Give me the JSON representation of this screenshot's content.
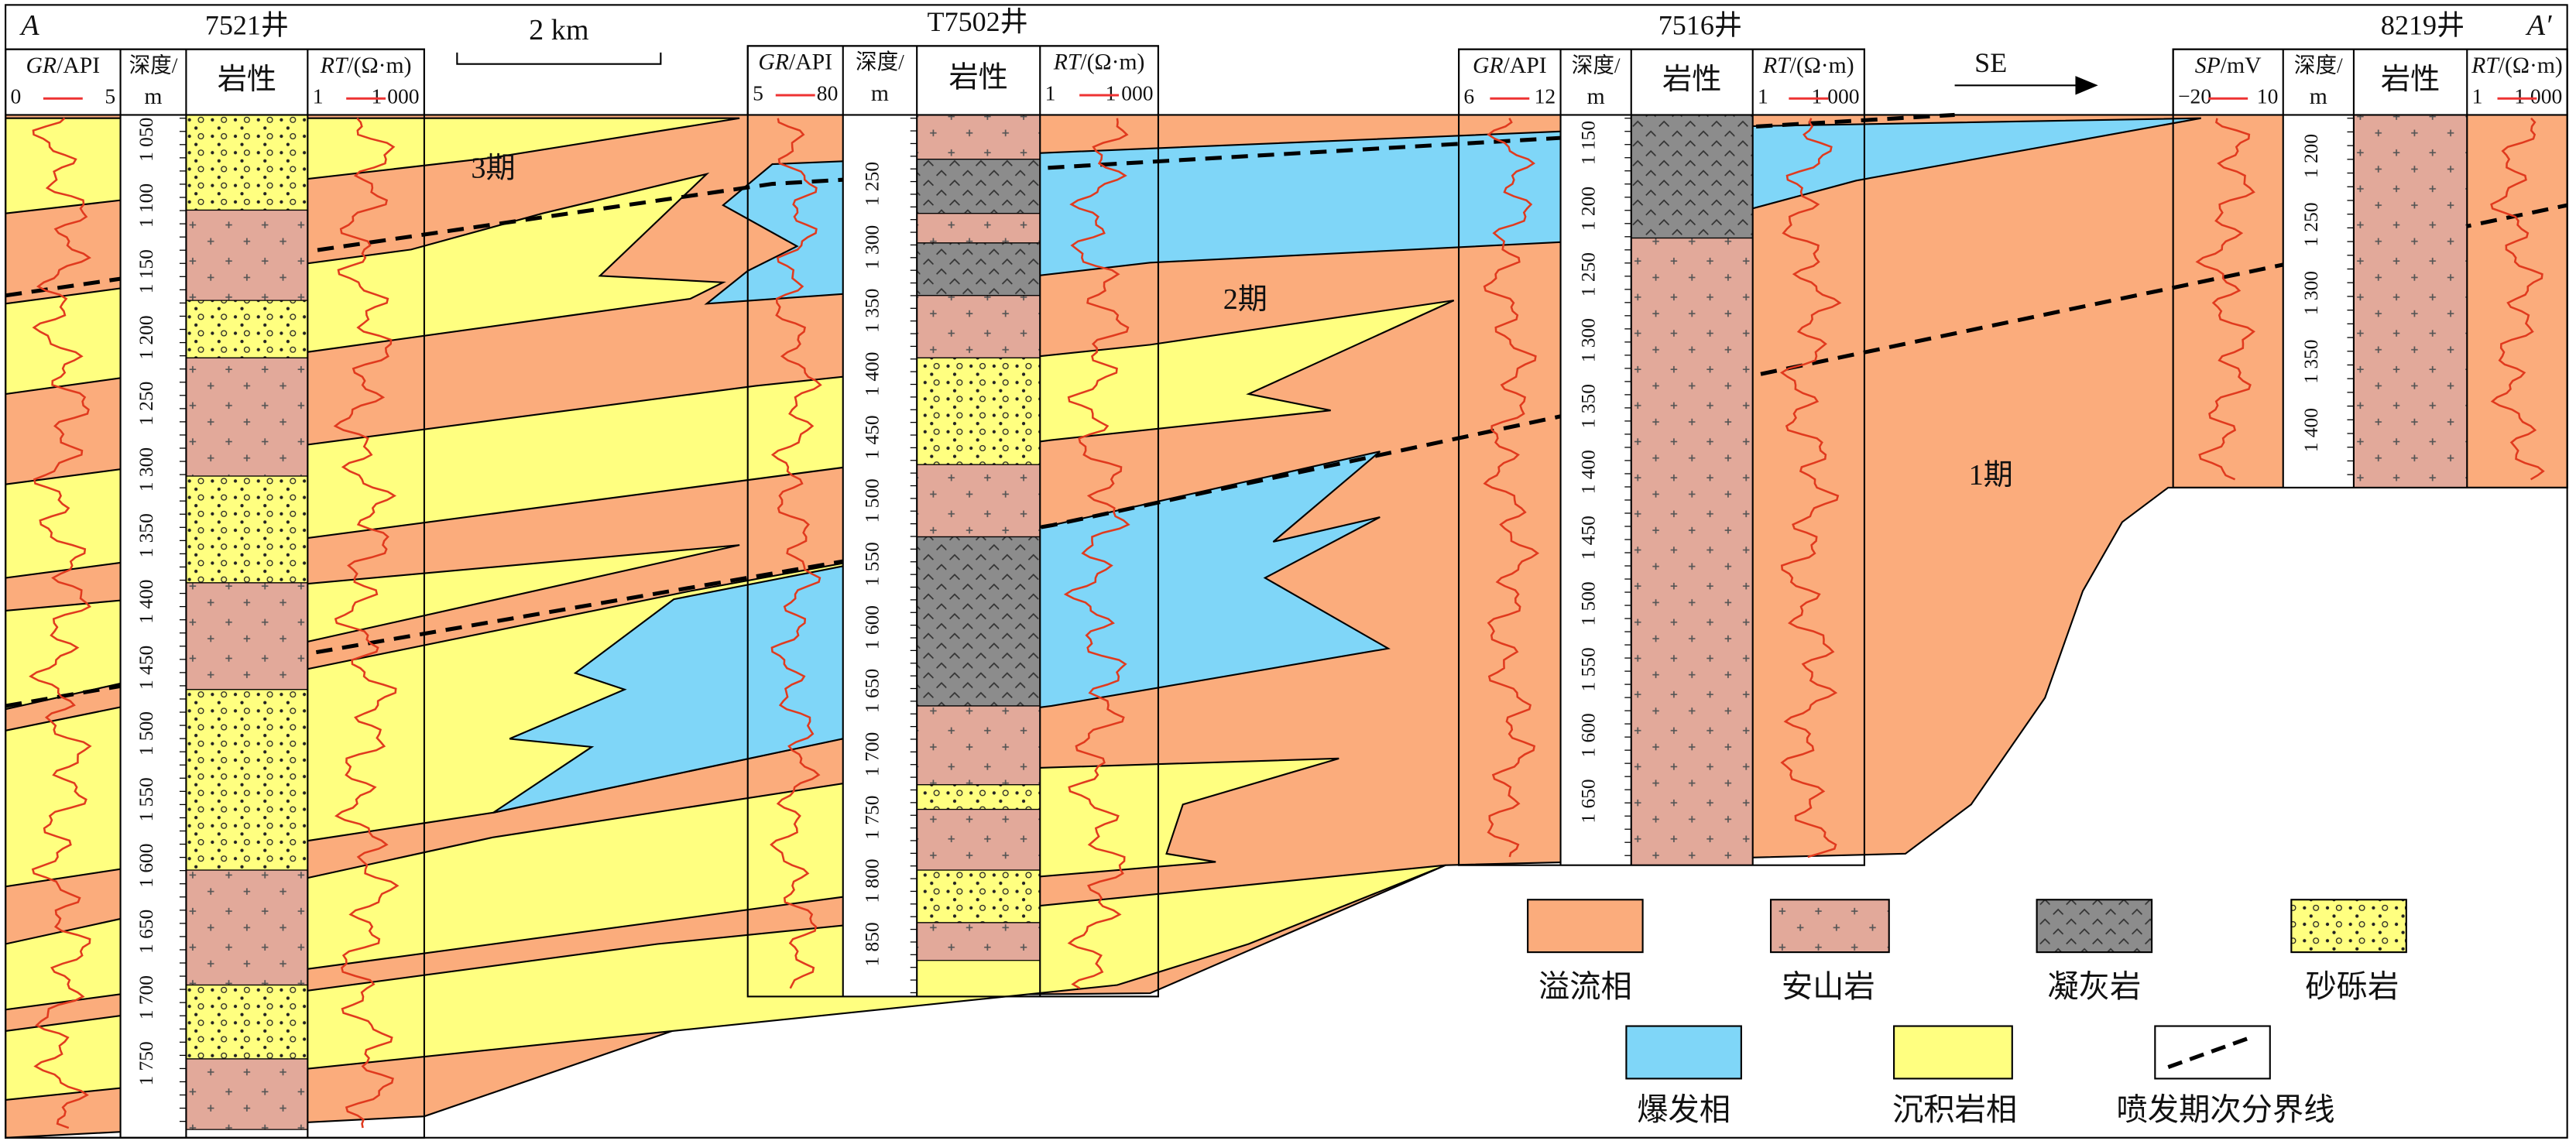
{
  "section": {
    "left_label": "A",
    "right_label": "A′",
    "scale": "2 km",
    "direction": "SE",
    "periods": [
      "3期",
      "2期",
      "1期"
    ]
  },
  "wells": [
    {
      "name": "7521井",
      "log1": {
        "curve": "GR",
        "unit": "/API",
        "min": "0",
        "max": "5"
      },
      "depth_header": "深度/",
      "depth_unit": "m",
      "lithology_header": "岩性",
      "log2": {
        "curve": "RT",
        "unit": "/(Ω·m)",
        "min": "1",
        "max": "1 000"
      },
      "depths": [
        "1 050",
        "1 100",
        "1 150",
        "1 200",
        "1 250",
        "1 300",
        "1 350",
        "1 400",
        "1 450",
        "1 500",
        "1 550",
        "1 600",
        "1 650",
        "1 700",
        "1 750"
      ]
    },
    {
      "name": "T7502井",
      "log1": {
        "curve": "GR",
        "unit": "/API",
        "min": "5",
        "max": "80"
      },
      "depth_header": "深度/",
      "depth_unit": "m",
      "lithology_header": "岩性",
      "log2": {
        "curve": "RT",
        "unit": "/(Ω·m)",
        "min": "1",
        "max": "1 000"
      },
      "depths": [
        "1 250",
        "1 300",
        "1 350",
        "1 400",
        "1 450",
        "1 500",
        "1 550",
        "1 600",
        "1 650",
        "1 700",
        "1 750",
        "1 800",
        "1 850"
      ]
    },
    {
      "name": "7516井",
      "log1": {
        "curve": "GR",
        "unit": "/API",
        "min": "6",
        "max": "12"
      },
      "depth_header": "深度/",
      "depth_unit": "m",
      "lithology_header": "岩性",
      "log2": {
        "curve": "RT",
        "unit": "/(Ω·m)",
        "min": "1",
        "max": "1 000"
      },
      "depths": [
        "1 150",
        "1 200",
        "1 250",
        "1 300",
        "1 350",
        "1 400",
        "1 450",
        "1 500",
        "1 550",
        "1 600",
        "1 650"
      ]
    },
    {
      "name": "8219井",
      "log1": {
        "curve": "SP",
        "unit": "/mV",
        "min": "−20",
        "max": "10"
      },
      "depth_header": "深度/",
      "depth_unit": "m",
      "lithology_header": "岩性",
      "log2": {
        "curve": "RT",
        "unit": "/(Ω·m)",
        "min": "1",
        "max": "1 000"
      },
      "depths": [
        "1 200",
        "1 250",
        "1 300",
        "1 350",
        "1 400"
      ]
    }
  ],
  "legend": [
    "溢流相",
    "安山岩",
    "凝灰岩",
    "砂砾岩",
    "爆发相",
    "沉积岩相",
    "喷发期次分界线"
  ]
}
